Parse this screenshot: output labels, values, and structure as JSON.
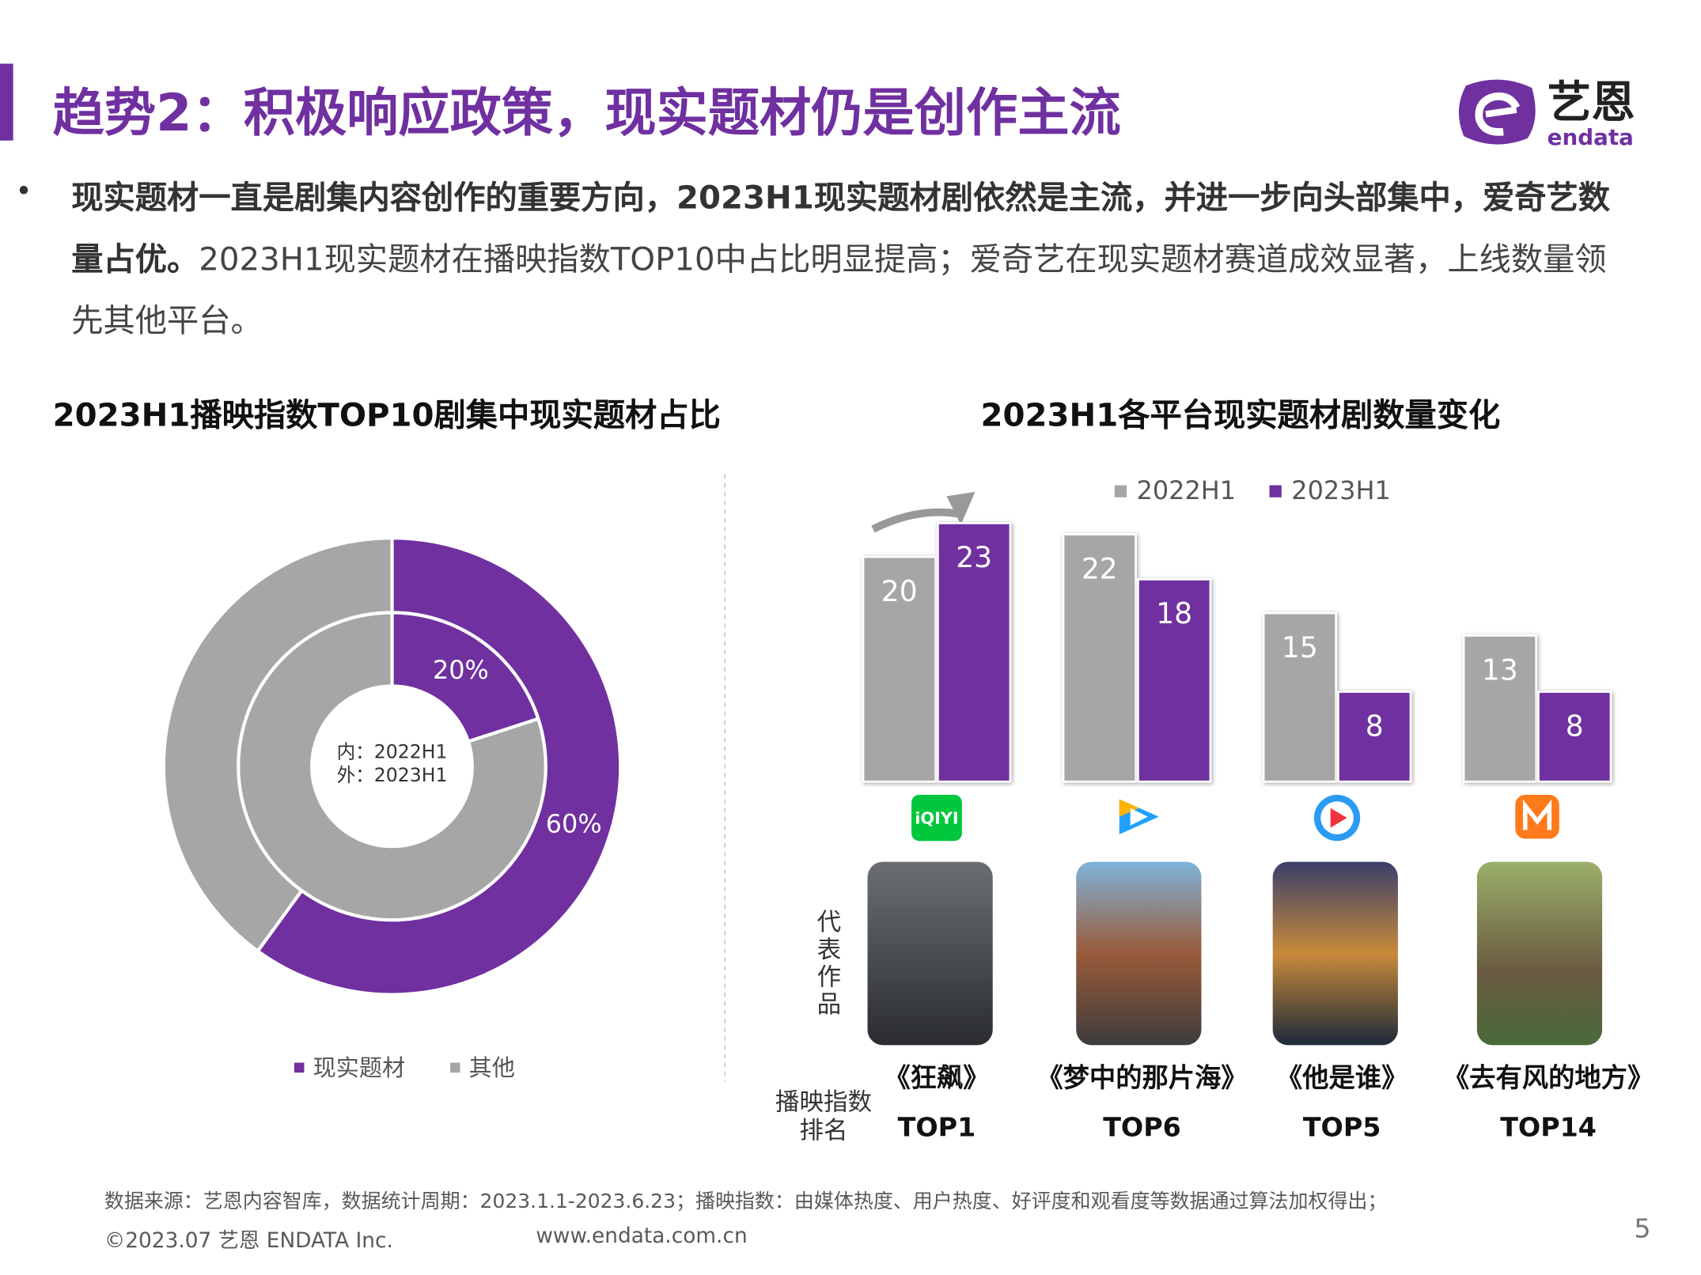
{
  "header": {
    "title": "趋势2：积极响应政策，现实题材仍是创作主流",
    "brand_cn": "艺恩",
    "brand_en": "endata"
  },
  "bullet": {
    "bold": "现实题材一直是剧集内容创作的重要方向，2023H1现实题材剧依然是主流，并进一步向头部集中，爱奇艺数量占优。",
    "normal": "2023H1现实题材在播映指数TOP10中占比明显提高；爱奇艺在现实题材赛道成效显著，上线数量领先其他平台。"
  },
  "chart_data": [
    {
      "type": "donut",
      "title": "2023H1播映指数TOP10剧集中现实题材占比",
      "categories": [
        "现实题材",
        "其他"
      ],
      "colors": [
        "#7030a0",
        "#a6a6a6"
      ],
      "series": [
        {
          "name": "内：2022H1",
          "values": [
            20,
            80
          ],
          "value_labels": [
            "20%",
            null
          ]
        },
        {
          "name": "外：2023H1",
          "values": [
            60,
            40
          ],
          "value_labels": [
            "60%",
            null
          ]
        }
      ]
    },
    {
      "type": "bar",
      "title": "2023H1各平台现实题材剧数量变化",
      "categories": [
        "iQIYI",
        null,
        null,
        null
      ],
      "ylim": [
        0,
        25
      ],
      "series": [
        {
          "name": "2022H1",
          "color": "#a6a6a6",
          "values": [
            20,
            22,
            15,
            13
          ]
        },
        {
          "name": "2023H1",
          "color": "#7030a0",
          "values": [
            23,
            18,
            8,
            8
          ]
        }
      ]
    }
  ],
  "works": {
    "label": "代表作品",
    "titles": [
      "《狂飙》",
      "《梦中的那片海》",
      "《他是谁》",
      "《去有风的地方》"
    ],
    "rank_label": "播映指数排名",
    "ranks": [
      "TOP1",
      "TOP6",
      "TOP5",
      "TOP14"
    ]
  },
  "footer": {
    "source": "数据来源：艺恩内容智库，数据统计周期：2023.1.1-2023.6.23；播映指数：由媒体热度、用户热度、好评度和观看度等数据通过算法加权得出；",
    "copyright": "©2023.07 艺恩 ENDATA Inc.",
    "url": "www.endata.com.cn",
    "page": "5"
  }
}
